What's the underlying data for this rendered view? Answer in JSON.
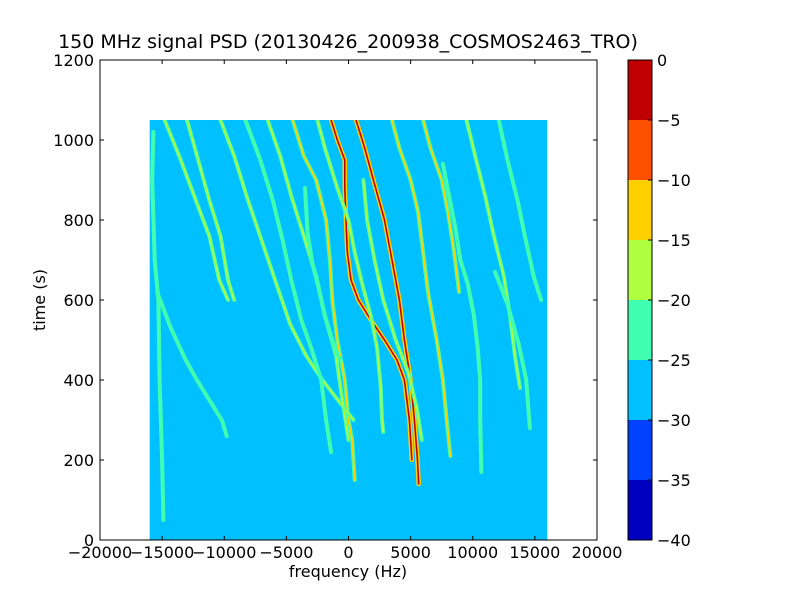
{
  "chart_data": {
    "type": "heatmap",
    "title": "150 MHz signal PSD (20130426_200938_COSMOS2463_TRO)",
    "xlabel": "frequency (Hz)",
    "ylabel": "time (s)",
    "xlim": [
      -20000,
      20000
    ],
    "ylim": [
      0,
      1200
    ],
    "xticks": [
      -20000,
      -15000,
      -10000,
      -5000,
      0,
      5000,
      10000,
      15000,
      20000
    ],
    "xtick_labels": [
      "−20000",
      "−15000",
      "−10000",
      "−5000",
      "0",
      "5000",
      "10000",
      "15000",
      "20000"
    ],
    "yticks": [
      0,
      200,
      400,
      600,
      800,
      1000,
      1200
    ],
    "ytick_labels": [
      "0",
      "200",
      "400",
      "600",
      "800",
      "1000",
      "1200"
    ],
    "data_extent": {
      "x": [
        -16000,
        16000
      ],
      "y": [
        0,
        1050
      ]
    },
    "background_level": -27.5,
    "colorbar": {
      "levels": [
        -40,
        -35,
        -30,
        -25,
        -20,
        -15,
        -10,
        -5,
        0
      ],
      "tick_labels": [
        "−40",
        "−35",
        "−30",
        "−25",
        "−20",
        "−15",
        "−10",
        "−5",
        "0"
      ],
      "colors": [
        "#0000c0",
        "#0040ff",
        "#00c0ff",
        "#40ffb0",
        "#b0ff40",
        "#ffd000",
        "#ff5000",
        "#c00000"
      ]
    },
    "traces": [
      {
        "level": -2.5,
        "points": [
          [
            600,
            1050
          ],
          [
            1300,
            980
          ],
          [
            2000,
            900
          ],
          [
            2900,
            800
          ],
          [
            3500,
            700
          ],
          [
            4100,
            600
          ],
          [
            4500,
            500
          ],
          [
            5000,
            400
          ],
          [
            5300,
            300
          ],
          [
            5550,
            200
          ],
          [
            5650,
            140
          ]
        ]
      },
      {
        "level": -2.5,
        "points": [
          [
            -1400,
            1050
          ],
          [
            -900,
            1000
          ],
          [
            -300,
            950
          ],
          [
            -300,
            880
          ],
          [
            -200,
            800
          ],
          [
            -100,
            720
          ],
          [
            200,
            650
          ],
          [
            800,
            600
          ],
          [
            1800,
            550
          ],
          [
            2900,
            500
          ],
          [
            3900,
            450
          ],
          [
            4500,
            400
          ],
          [
            4900,
            300
          ],
          [
            5100,
            200
          ]
        ]
      },
      {
        "level": -12.5,
        "points": [
          [
            -4500,
            1050
          ],
          [
            -3600,
            960
          ],
          [
            -2600,
            900
          ],
          [
            -1800,
            800
          ],
          [
            -1500,
            700
          ],
          [
            -1300,
            600
          ],
          [
            -900,
            500
          ],
          [
            -300,
            400
          ],
          [
            0,
            300
          ],
          [
            300,
            250
          ],
          [
            500,
            150
          ]
        ]
      },
      {
        "level": -12.5,
        "points": [
          [
            3500,
            1050
          ],
          [
            4100,
            980
          ],
          [
            5000,
            900
          ],
          [
            5600,
            820
          ],
          [
            6000,
            720
          ],
          [
            6400,
            620
          ],
          [
            7100,
            500
          ],
          [
            7600,
            400
          ],
          [
            7900,
            300
          ],
          [
            8200,
            210
          ]
        ]
      },
      {
        "level": -17.5,
        "points": [
          [
            -2500,
            1050
          ],
          [
            -1900,
            980
          ],
          [
            -900,
            880
          ],
          [
            0,
            800
          ],
          [
            500,
            720
          ],
          [
            1100,
            640
          ],
          [
            1800,
            560
          ],
          [
            2300,
            480
          ],
          [
            2600,
            380
          ],
          [
            2700,
            300
          ],
          [
            2800,
            270
          ]
        ]
      },
      {
        "level": -12.5,
        "points": [
          [
            6000,
            1050
          ],
          [
            6600,
            980
          ],
          [
            7500,
            900
          ],
          [
            8000,
            820
          ],
          [
            8500,
            720
          ],
          [
            8900,
            620
          ]
        ]
      },
      {
        "level": -17.5,
        "points": [
          [
            -10300,
            1050
          ],
          [
            -9200,
            960
          ],
          [
            -8100,
            850
          ],
          [
            -7000,
            750
          ],
          [
            -5800,
            640
          ],
          [
            -4700,
            540
          ],
          [
            -3400,
            460
          ],
          [
            -2100,
            400
          ],
          [
            -600,
            340
          ],
          [
            400,
            300
          ]
        ]
      },
      {
        "level": -17.5,
        "points": [
          [
            -6500,
            1050
          ],
          [
            -5500,
            960
          ],
          [
            -4600,
            860
          ],
          [
            -3600,
            760
          ],
          [
            -2600,
            660
          ],
          [
            -1900,
            560
          ],
          [
            -1000,
            460
          ],
          [
            -500,
            350
          ],
          [
            0,
            250
          ]
        ]
      },
      {
        "level": -17.5,
        "points": [
          [
            1200,
            900
          ],
          [
            1500,
            800
          ],
          [
            2100,
            700
          ],
          [
            2800,
            600
          ],
          [
            3800,
            500
          ],
          [
            4800,
            420
          ],
          [
            5500,
            330
          ],
          [
            5900,
            250
          ]
        ]
      },
      {
        "level": -17.5,
        "points": [
          [
            9500,
            1050
          ],
          [
            10200,
            960
          ],
          [
            11000,
            860
          ],
          [
            11700,
            760
          ],
          [
            12500,
            660
          ],
          [
            13000,
            560
          ],
          [
            13400,
            460
          ],
          [
            13800,
            380
          ]
        ]
      },
      {
        "level": -17.5,
        "points": [
          [
            -14800,
            1050
          ],
          [
            -13500,
            950
          ],
          [
            -12300,
            850
          ],
          [
            -11200,
            760
          ],
          [
            -10400,
            650
          ],
          [
            -9700,
            600
          ]
        ]
      },
      {
        "level": -17.5,
        "points": [
          [
            -13000,
            1050
          ],
          [
            -12100,
            950
          ],
          [
            -11200,
            850
          ],
          [
            -10300,
            760
          ],
          [
            -9700,
            650
          ],
          [
            -9200,
            600
          ]
        ]
      },
      {
        "level": -22.5,
        "points": [
          [
            -8300,
            1050
          ],
          [
            -7100,
            950
          ],
          [
            -6100,
            850
          ],
          [
            -5300,
            750
          ],
          [
            -4600,
            650
          ],
          [
            -3800,
            550
          ],
          [
            -3000,
            480
          ],
          [
            -2200,
            400
          ],
          [
            -1800,
            300
          ],
          [
            -1400,
            220
          ]
        ]
      },
      {
        "level": -22.5,
        "points": [
          [
            12100,
            1050
          ],
          [
            12800,
            950
          ],
          [
            13600,
            850
          ],
          [
            14200,
            760
          ],
          [
            14900,
            660
          ],
          [
            15500,
            600
          ]
        ]
      },
      {
        "level": -22.5,
        "points": [
          [
            -15400,
            620
          ],
          [
            -14300,
            530
          ],
          [
            -13100,
            450
          ],
          [
            -12200,
            400
          ],
          [
            -11200,
            350
          ],
          [
            -10200,
            300
          ],
          [
            -9800,
            260
          ]
        ]
      },
      {
        "level": -22.5,
        "points": [
          [
            7600,
            940
          ],
          [
            8100,
            860
          ],
          [
            8600,
            780
          ],
          [
            9000,
            700
          ],
          [
            9600,
            640
          ],
          [
            10100,
            560
          ],
          [
            10400,
            480
          ],
          [
            10600,
            400
          ],
          [
            10600,
            300
          ],
          [
            10700,
            170
          ]
        ]
      },
      {
        "level": -22.5,
        "points": [
          [
            -15700,
            1020
          ],
          [
            -15800,
            900
          ],
          [
            -15600,
            700
          ],
          [
            -15300,
            600
          ],
          [
            -15200,
            400
          ],
          [
            -15000,
            200
          ],
          [
            -14900,
            50
          ]
        ]
      },
      {
        "level": -22.5,
        "points": [
          [
            -3500,
            880
          ],
          [
            -3300,
            770
          ],
          [
            -2900,
            690
          ],
          [
            -2400,
            630
          ],
          [
            -1900,
            560
          ],
          [
            -1300,
            500
          ],
          [
            -700,
            450
          ]
        ]
      },
      {
        "level": -22.5,
        "points": [
          [
            11800,
            670
          ],
          [
            12800,
            590
          ],
          [
            13700,
            490
          ],
          [
            14300,
            400
          ],
          [
            14600,
            280
          ]
        ]
      }
    ]
  }
}
